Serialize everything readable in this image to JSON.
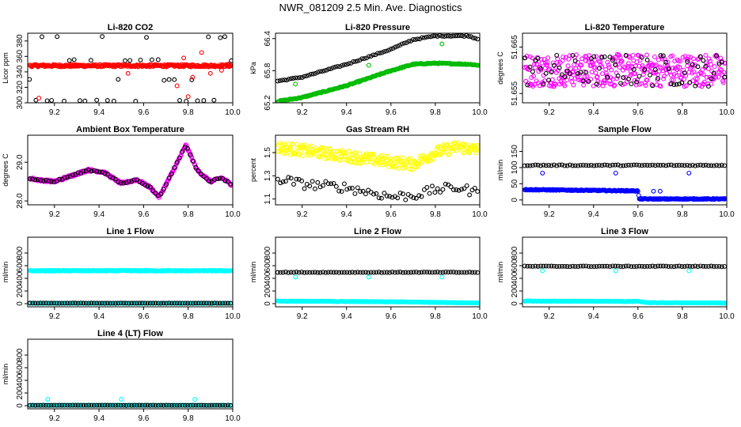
{
  "figure": {
    "title": "NWR_081209  2.5 Min. Ave. Diagnostics"
  },
  "chart_data": [
    {
      "type": "scatter",
      "title": "Li-820 CO2",
      "xlabel": "",
      "ylabel": "Licor ppm",
      "xlim": [
        9.08,
        10.0
      ],
      "ylim": [
        300,
        390
      ],
      "xticks": [
        9.2,
        9.4,
        9.6,
        9.8,
        10.0
      ],
      "xtick_labels": [
        "9.2",
        "9.4",
        "9.6",
        "9.8",
        "10.0"
      ],
      "yticks": [
        300,
        320,
        340,
        360,
        380
      ],
      "ytick_labels": [
        "300",
        "320",
        "340",
        "360",
        "380"
      ],
      "series": [
        {
          "name": "black",
          "color": "#000000",
          "mode": "levels",
          "levels": [
            385,
            355,
            330,
            303
          ],
          "step": 0.025
        },
        {
          "name": "red",
          "color": "#ff0000",
          "mode": "band",
          "base": 348,
          "noise": 1.5,
          "step": 0.003
        },
        {
          "name": "red-outliers",
          "color": "#ff0000",
          "mode": "points",
          "x": [
            9.13,
            9.53,
            9.78,
            9.82,
            9.86,
            9.9,
            9.95,
            9.98,
            9.75,
            9.8
          ],
          "y": [
            306,
            338,
            358,
            333,
            365,
            338,
            342,
            350,
            322,
            308
          ]
        }
      ]
    },
    {
      "type": "scatter",
      "title": "Li-820 Pressure",
      "xlabel": "",
      "ylabel": "kPa",
      "xlim": [
        9.08,
        10.0
      ],
      "ylim": [
        65.2,
        66.5
      ],
      "xticks": [
        9.2,
        9.4,
        9.6,
        9.8,
        10.0
      ],
      "xtick_labels": [
        "9.2",
        "9.4",
        "9.6",
        "9.8",
        "10.0"
      ],
      "yticks": [
        65.2,
        65.8,
        66.4
      ],
      "ytick_labels": [
        "65.2",
        "65.8",
        "66.4"
      ],
      "series": [
        {
          "name": "black",
          "color": "#000000",
          "mode": "curve",
          "x": [
            9.08,
            9.2,
            9.4,
            9.6,
            9.7,
            9.8,
            9.95,
            10.0
          ],
          "y": [
            65.6,
            65.68,
            65.92,
            66.2,
            66.38,
            66.45,
            66.45,
            66.38
          ],
          "step": 0.01,
          "noise": 0.01
        },
        {
          "name": "green",
          "color": "#00bb00",
          "mode": "curve",
          "x": [
            9.08,
            9.2,
            9.4,
            9.6,
            9.7,
            9.8,
            9.95,
            10.0
          ],
          "y": [
            65.22,
            65.3,
            65.52,
            65.8,
            65.92,
            65.94,
            65.92,
            65.9
          ],
          "step": 0.004,
          "noise": 0.01
        },
        {
          "name": "green-outliers",
          "color": "#00bb00",
          "mode": "points",
          "x": [
            9.17,
            9.5,
            9.83
          ],
          "y": [
            65.55,
            65.9,
            66.3
          ]
        }
      ]
    },
    {
      "type": "scatter",
      "title": "Li-820 Temperature",
      "xlabel": "",
      "ylabel": "degrees C",
      "xlim": [
        9.08,
        10.0
      ],
      "ylim": [
        51.653,
        51.668
      ],
      "xticks": [
        9.2,
        9.4,
        9.6,
        9.8,
        10.0
      ],
      "xtick_labels": [
        "9.2",
        "9.4",
        "9.6",
        "9.8",
        "10.0"
      ],
      "yticks": [
        51.655,
        51.665
      ],
      "ytick_labels": [
        "51.655",
        "51.665"
      ],
      "series": [
        {
          "name": "magenta",
          "color": "#ff00ff",
          "mode": "noise",
          "base": 51.66,
          "noise": 0.0035,
          "step": 0.0025
        },
        {
          "name": "black",
          "color": "#000000",
          "mode": "noise",
          "base": 51.66,
          "noise": 0.0035,
          "step": 0.012
        }
      ]
    },
    {
      "type": "scatter",
      "title": "Ambient Box Temperature",
      "xlabel": "",
      "ylabel": "degrees C",
      "xlim": [
        9.08,
        10.0
      ],
      "ylim": [
        27.9,
        29.7
      ],
      "xticks": [
        9.2,
        9.4,
        9.6,
        9.8,
        10.0
      ],
      "xtick_labels": [
        "9.2",
        "9.4",
        "9.6",
        "9.8",
        "10.0"
      ],
      "yticks": [
        28.0,
        29.0
      ],
      "ytick_labels": [
        "28.0",
        "29.0"
      ],
      "series": [
        {
          "name": "magenta",
          "color": "#ff00ff",
          "mode": "curve",
          "x": [
            9.08,
            9.12,
            9.2,
            9.3,
            9.35,
            9.42,
            9.5,
            9.57,
            9.63,
            9.67,
            9.73,
            9.79,
            9.84,
            9.9,
            9.95,
            10.0
          ],
          "y": [
            28.6,
            28.55,
            28.5,
            28.7,
            28.8,
            28.75,
            28.45,
            28.55,
            28.35,
            28.1,
            28.75,
            29.45,
            28.8,
            28.5,
            28.6,
            28.4
          ],
          "step": 0.003,
          "noise": 0.03
        },
        {
          "name": "black",
          "color": "#000000",
          "mode": "curve",
          "x": [
            9.08,
            9.12,
            9.2,
            9.3,
            9.35,
            9.42,
            9.5,
            9.57,
            9.63,
            9.67,
            9.73,
            9.79,
            9.84,
            9.9,
            9.95,
            10.0
          ],
          "y": [
            28.6,
            28.55,
            28.5,
            28.7,
            28.8,
            28.75,
            28.45,
            28.55,
            28.35,
            28.1,
            28.75,
            29.45,
            28.8,
            28.5,
            28.6,
            28.4
          ],
          "step": 0.012,
          "noise": 0.02
        }
      ]
    },
    {
      "type": "scatter",
      "title": "Gas Stream RH",
      "xlabel": "",
      "ylabel": "percent",
      "xlim": [
        9.08,
        10.0
      ],
      "ylim": [
        1.05,
        1.65
      ],
      "xticks": [
        9.2,
        9.4,
        9.6,
        9.8,
        10.0
      ],
      "xtick_labels": [
        "9.2",
        "9.4",
        "9.6",
        "9.8",
        "10.0"
      ],
      "yticks": [
        1.1,
        1.3,
        1.5
      ],
      "ytick_labels": [
        "1.1",
        "1.3",
        "1.5"
      ],
      "series": [
        {
          "name": "yellow",
          "color": "#ffff00",
          "mode": "curve",
          "x": [
            9.08,
            9.2,
            9.4,
            9.6,
            9.7,
            9.8,
            9.9,
            10.0
          ],
          "y": [
            1.55,
            1.52,
            1.47,
            1.42,
            1.4,
            1.5,
            1.55,
            1.52
          ],
          "step": 0.003,
          "noise": 0.05
        },
        {
          "name": "black",
          "color": "#000000",
          "mode": "curve",
          "x": [
            9.08,
            9.2,
            9.4,
            9.6,
            9.7,
            9.8,
            9.9,
            10.0
          ],
          "y": [
            1.28,
            1.23,
            1.2,
            1.12,
            1.13,
            1.18,
            1.2,
            1.15
          ],
          "step": 0.012,
          "noise": 0.04
        }
      ]
    },
    {
      "type": "scatter",
      "title": "Sample Flow",
      "xlabel": "",
      "ylabel": "ml/min",
      "xlim": [
        9.08,
        10.0
      ],
      "ylim": [
        -15,
        200
      ],
      "xticks": [
        9.2,
        9.4,
        9.6,
        9.8,
        10.0
      ],
      "xtick_labels": [
        "9.2",
        "9.4",
        "9.6",
        "9.8",
        "10.0"
      ],
      "yticks": [
        0,
        50,
        100,
        150
      ],
      "ytick_labels": [
        "0",
        "50",
        "100",
        "150"
      ],
      "series": [
        {
          "name": "black",
          "color": "#000000",
          "mode": "band",
          "base": 107,
          "noise": 1.5,
          "step": 0.012
        },
        {
          "name": "blue",
          "color": "#0000ff",
          "mode": "curve",
          "x": [
            9.08,
            9.6,
            9.605,
            10.0
          ],
          "y": [
            32,
            28,
            3,
            3
          ],
          "step": 0.003,
          "noise": 1.5
        },
        {
          "name": "blue-outliers",
          "color": "#0000ff",
          "mode": "points",
          "x": [
            9.17,
            9.5,
            9.67,
            9.7,
            9.83
          ],
          "y": [
            83,
            83,
            27,
            27,
            83
          ]
        }
      ]
    },
    {
      "type": "scatter",
      "title": "Line 1 Flow",
      "xlabel": "",
      "ylabel": "ml/min",
      "xlim": [
        9.08,
        10.0
      ],
      "ylim": [
        -50,
        1050
      ],
      "xticks": [
        9.2,
        9.4,
        9.6,
        9.8,
        10.0
      ],
      "xtick_labels": [
        "9.2",
        "9.4",
        "9.6",
        "9.8",
        "10.0"
      ],
      "yticks": [
        0,
        200,
        400,
        600,
        800
      ],
      "ytick_labels": [
        "0",
        "200",
        "400",
        "600",
        "800"
      ],
      "series": [
        {
          "name": "cyan",
          "color": "#00ffff",
          "mode": "band",
          "base": 520,
          "noise": 7,
          "step": 0.003
        },
        {
          "name": "cyan-low",
          "color": "#00ffff",
          "mode": "band",
          "base": 5,
          "noise": 3,
          "step": 0.006
        },
        {
          "name": "black",
          "color": "#000000",
          "mode": "band",
          "base": 8,
          "noise": 2,
          "step": 0.012
        }
      ]
    },
    {
      "type": "scatter",
      "title": "Line 2 Flow",
      "xlabel": "",
      "ylabel": "ml/min",
      "xlim": [
        9.08,
        10.0
      ],
      "ylim": [
        -50,
        1050
      ],
      "xticks": [
        9.2,
        9.4,
        9.6,
        9.8,
        10.0
      ],
      "xtick_labels": [
        "9.2",
        "9.4",
        "9.6",
        "9.8",
        "10.0"
      ],
      "yticks": [
        0,
        200,
        400,
        600,
        800
      ],
      "ytick_labels": [
        "0",
        "200",
        "400",
        "600",
        "800"
      ],
      "series": [
        {
          "name": "black",
          "color": "#000000",
          "mode": "band",
          "base": 495,
          "noise": 5,
          "step": 0.012
        },
        {
          "name": "cyan",
          "color": "#00ffff",
          "mode": "curve",
          "x": [
            9.08,
            9.6,
            10.0
          ],
          "y": [
            40,
            30,
            10
          ],
          "step": 0.003,
          "noise": 4
        },
        {
          "name": "cyan-outliers",
          "color": "#00ffff",
          "mode": "points",
          "x": [
            9.17,
            9.5,
            9.83
          ],
          "y": [
            420,
            420,
            420
          ]
        }
      ]
    },
    {
      "type": "scatter",
      "title": "Line 3 Flow",
      "xlabel": "",
      "ylabel": "ml/min",
      "xlim": [
        9.08,
        10.0
      ],
      "ylim": [
        -50,
        1050
      ],
      "xticks": [
        9.2,
        9.4,
        9.6,
        9.8,
        10.0
      ],
      "xtick_labels": [
        "9.2",
        "9.4",
        "9.6",
        "9.8",
        "10.0"
      ],
      "yticks": [
        0,
        200,
        400,
        600,
        800
      ],
      "ytick_labels": [
        "0",
        "200",
        "400",
        "600",
        "800"
      ],
      "series": [
        {
          "name": "black",
          "color": "#000000",
          "mode": "band",
          "base": 590,
          "noise": 5,
          "step": 0.012
        },
        {
          "name": "cyan",
          "color": "#00ffff",
          "mode": "curve",
          "x": [
            9.08,
            9.6,
            9.65,
            10.0
          ],
          "y": [
            40,
            35,
            15,
            10
          ],
          "step": 0.003,
          "noise": 4
        },
        {
          "name": "cyan-outliers",
          "color": "#00ffff",
          "mode": "points",
          "x": [
            9.17,
            9.5,
            9.83
          ],
          "y": [
            520,
            520,
            520
          ]
        }
      ]
    },
    {
      "type": "scatter",
      "title": "Line 4 (LT) Flow",
      "xlabel": "",
      "ylabel": "ml/min",
      "xlim": [
        9.08,
        10.0
      ],
      "ylim": [
        -50,
        1050
      ],
      "xticks": [
        9.2,
        9.4,
        9.6,
        9.8,
        10.0
      ],
      "xtick_labels": [
        "9.2",
        "9.4",
        "9.6",
        "9.8",
        "10.0"
      ],
      "yticks": [
        0,
        200,
        400,
        600,
        800
      ],
      "ytick_labels": [
        "0",
        "200",
        "400",
        "600",
        "800"
      ],
      "series": [
        {
          "name": "cyan",
          "color": "#00ffff",
          "mode": "band",
          "base": 5,
          "noise": 3,
          "step": 0.005
        },
        {
          "name": "black",
          "color": "#000000",
          "mode": "band",
          "base": 5,
          "noise": 2,
          "step": 0.012
        },
        {
          "name": "cyan-outliers",
          "color": "#00ffff",
          "mode": "points",
          "x": [
            9.17,
            9.5,
            9.83
          ],
          "y": [
            100,
            100,
            100
          ]
        }
      ]
    }
  ]
}
